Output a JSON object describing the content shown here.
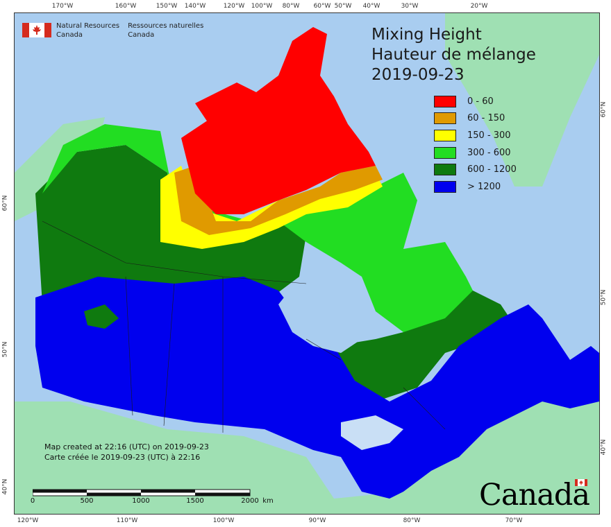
{
  "map": {
    "title_en": "Mixing Height",
    "title_fr": "Hauteur de mélange",
    "date": "2019-09-23",
    "colors": {
      "ocean": "#a9cdf0",
      "land_other": "#9fe0b3",
      "lake": "#c9dff5"
    },
    "legend": [
      {
        "label": "0 - 60",
        "color": "#ff0000"
      },
      {
        "label": "60 - 150",
        "color": "#e09a00"
      },
      {
        "label": "150 - 300",
        "color": "#ffff00"
      },
      {
        "label": "300 - 600",
        "color": "#22dd22"
      },
      {
        "label": "600 - 1200",
        "color": "#0f7a0f"
      },
      {
        "label": "> 1200",
        "color": "#0000ee"
      }
    ],
    "lon_ticks_top": [
      "170°W",
      "160°W",
      "150°W",
      "140°W",
      "120°W",
      "100°W",
      "80°W",
      "60°W",
      "50°W",
      "40°W",
      "30°W",
      "20°W"
    ],
    "lon_ticks_bottom": [
      "120°W",
      "110°W",
      "100°W",
      "90°W",
      "80°W",
      "70°W"
    ],
    "lat_ticks_left": [
      "60°N",
      "50°N",
      "40°N"
    ],
    "lat_ticks_right": [
      "60°N",
      "50°N",
      "40°N"
    ]
  },
  "agency": {
    "name_en_line1": "Natural Resources",
    "name_en_line2": "Canada",
    "name_fr_line1": "Ressources naturelles",
    "name_fr_line2": "Canada"
  },
  "credit": {
    "line_en": "Map created at 22:16 (UTC) on 2019-09-23",
    "line_fr": "Carte créée le 2019-09-23 (UTC) à 22:16"
  },
  "scale": {
    "labels": [
      "0",
      "500",
      "1000",
      "1500",
      "2000"
    ],
    "unit": "km"
  },
  "wordmark": "Canada"
}
